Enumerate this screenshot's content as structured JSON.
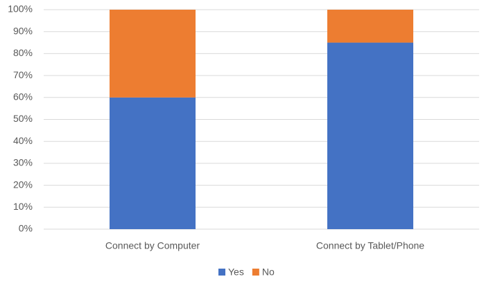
{
  "chart_data": {
    "type": "stacked_bar",
    "categories": [
      "Connect by Computer",
      "Connect by Tablet/Phone"
    ],
    "series": [
      {
        "name": "Yes",
        "color": "#4472c4",
        "values": [
          60,
          85
        ]
      },
      {
        "name": "No",
        "color": "#ed7d31",
        "values": [
          40,
          15
        ]
      }
    ],
    "ylim": [
      0,
      100
    ],
    "yticks": [
      {
        "value": 0,
        "label": "0%"
      },
      {
        "value": 10,
        "label": "10%"
      },
      {
        "value": 20,
        "label": "20%"
      },
      {
        "value": 30,
        "label": "30%"
      },
      {
        "value": 40,
        "label": "40%"
      },
      {
        "value": 50,
        "label": "50%"
      },
      {
        "value": 60,
        "label": "60%"
      },
      {
        "value": 70,
        "label": "70%"
      },
      {
        "value": 80,
        "label": "80%"
      },
      {
        "value": 90,
        "label": "90%"
      },
      {
        "value": 100,
        "label": "100%"
      }
    ],
    "grid": true,
    "legend": "bottom"
  }
}
